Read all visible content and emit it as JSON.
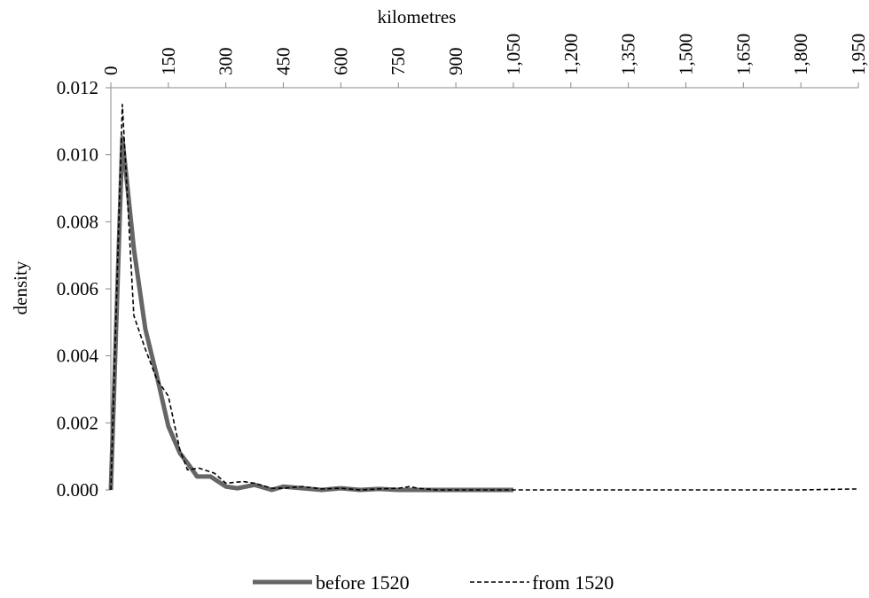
{
  "chart_data": {
    "type": "line",
    "xlabel": "kilometres",
    "ylabel": "density",
    "xlim": [
      0,
      1950
    ],
    "ylim": [
      0,
      0.012
    ],
    "x_ticks": [
      "0",
      "150",
      "300",
      "450",
      "600",
      "750",
      "900",
      "1,050",
      "1,200",
      "1,350",
      "1,500",
      "1,650",
      "1,800",
      "1,950"
    ],
    "y_ticks": [
      "0.000",
      "0.002",
      "0.004",
      "0.006",
      "0.008",
      "0.010",
      "0.012"
    ],
    "grid": false,
    "legend_position": "bottom",
    "series": [
      {
        "name": "before 1520",
        "style": "solid",
        "color": "#666666",
        "points": [
          [
            0,
            0.0
          ],
          [
            30,
            0.0105
          ],
          [
            60,
            0.0072
          ],
          [
            90,
            0.0048
          ],
          [
            120,
            0.0034
          ],
          [
            150,
            0.0019
          ],
          [
            180,
            0.0011
          ],
          [
            200,
            0.0008
          ],
          [
            225,
            0.0004
          ],
          [
            260,
            0.0004
          ],
          [
            300,
            0.0001
          ],
          [
            330,
            5e-05
          ],
          [
            375,
            0.00015
          ],
          [
            420,
            0.0
          ],
          [
            450,
            0.0001
          ],
          [
            500,
            5e-05
          ],
          [
            550,
            0.0
          ],
          [
            600,
            5e-05
          ],
          [
            650,
            0.0
          ],
          [
            700,
            3e-05
          ],
          [
            750,
            0.0
          ],
          [
            800,
            0.0
          ],
          [
            900,
            0.0
          ],
          [
            1050,
            0.0
          ]
        ]
      },
      {
        "name": "from 1520",
        "style": "dashed",
        "color": "#000000",
        "points": [
          [
            0,
            0.0
          ],
          [
            30,
            0.0115
          ],
          [
            60,
            0.0052
          ],
          [
            90,
            0.0042
          ],
          [
            120,
            0.0033
          ],
          [
            150,
            0.0028
          ],
          [
            180,
            0.0012
          ],
          [
            200,
            0.0006
          ],
          [
            230,
            0.00065
          ],
          [
            270,
            0.0005
          ],
          [
            300,
            0.0002
          ],
          [
            345,
            0.00025
          ],
          [
            375,
            0.0002
          ],
          [
            420,
            5e-05
          ],
          [
            450,
            5e-05
          ],
          [
            500,
            0.0001
          ],
          [
            550,
            3e-05
          ],
          [
            600,
            5e-05
          ],
          [
            650,
            0.0
          ],
          [
            700,
            3e-05
          ],
          [
            750,
            5e-05
          ],
          [
            780,
            0.0001
          ],
          [
            800,
            5e-05
          ],
          [
            850,
            0.0
          ],
          [
            900,
            0.0
          ],
          [
            1050,
            0.0
          ],
          [
            1200,
            0.0
          ],
          [
            1500,
            0.0
          ],
          [
            1800,
            0.0
          ],
          [
            1950,
            3e-05
          ]
        ]
      }
    ]
  }
}
